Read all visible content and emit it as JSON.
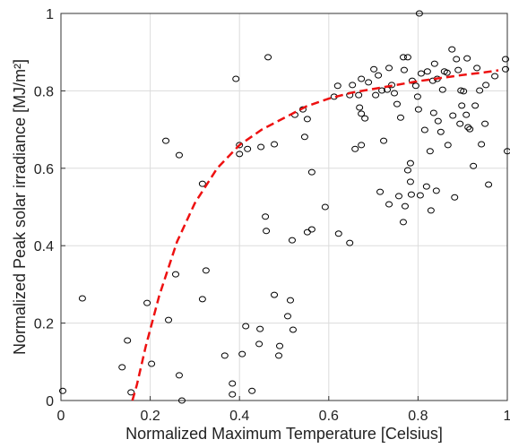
{
  "chart_data": {
    "type": "scatter",
    "xlabel": "Normalized Maximum Temperature [Celsius]",
    "ylabel": "Normalized Peak solar irradiance [MJ/m²]",
    "xlim": [
      0,
      1
    ],
    "ylim": [
      0,
      1
    ],
    "xticks": [
      0,
      0.2,
      0.4,
      0.6,
      0.8,
      1
    ],
    "yticks": [
      0,
      0.2,
      0.4,
      0.6,
      0.8,
      1
    ],
    "grid": true,
    "series": [
      {
        "marker": "circle",
        "color": "#000000",
        "x": [
          0.004,
          0.048,
          0.137,
          0.149,
          0.157,
          0.193,
          0.203,
          0.235,
          0.241,
          0.257,
          0.265,
          0.265,
          0.271,
          0.317,
          0.325,
          0.317,
          0.367,
          0.384,
          0.384,
          0.392,
          0.4,
          0.4,
          0.406,
          0.414,
          0.418,
          0.428,
          0.444,
          0.446,
          0.448,
          0.458,
          0.46,
          0.464,
          0.478,
          0.478,
          0.488,
          0.49,
          0.508,
          0.514,
          0.518,
          0.52,
          0.524,
          0.542,
          0.546,
          0.552,
          0.552,
          0.562,
          0.562,
          0.592,
          0.612,
          0.622,
          0.62,
          0.647,
          0.647,
          0.653,
          0.659,
          0.667,
          0.673,
          0.673,
          0.669,
          0.673,
          0.681,
          0.689,
          0.701,
          0.705,
          0.711,
          0.715,
          0.719,
          0.723,
          0.731,
          0.735,
          0.735,
          0.741,
          0.747,
          0.753,
          0.757,
          0.761,
          0.767,
          0.767,
          0.769,
          0.771,
          0.777,
          0.777,
          0.783,
          0.783,
          0.785,
          0.787,
          0.795,
          0.799,
          0.801,
          0.803,
          0.805,
          0.807,
          0.815,
          0.819,
          0.821,
          0.827,
          0.829,
          0.833,
          0.835,
          0.837,
          0.841,
          0.843,
          0.845,
          0.851,
          0.855,
          0.859,
          0.865,
          0.867,
          0.876,
          0.878,
          0.882,
          0.886,
          0.89,
          0.894,
          0.896,
          0.898,
          0.902,
          0.908,
          0.91,
          0.912,
          0.916,
          0.924,
          0.928,
          0.932,
          0.938,
          0.942,
          0.95,
          0.952,
          0.958,
          0.972,
          0.996,
          0.996,
          1.0
        ],
        "values": [
          0.025,
          0.264,
          0.086,
          0.155,
          0.021,
          0.252,
          0.095,
          0.671,
          0.208,
          0.326,
          0.634,
          0.065,
          0.0,
          0.56,
          0.336,
          0.262,
          0.116,
          0.044,
          0.016,
          0.831,
          0.66,
          0.637,
          0.12,
          0.192,
          0.65,
          0.025,
          0.146,
          0.185,
          0.655,
          0.475,
          0.438,
          0.887,
          0.662,
          0.273,
          0.116,
          0.141,
          0.218,
          0.259,
          0.414,
          0.183,
          0.738,
          0.752,
          0.681,
          0.727,
          0.435,
          0.442,
          0.59,
          0.5,
          0.785,
          0.431,
          0.813,
          0.789,
          0.407,
          0.815,
          0.65,
          0.789,
          0.831,
          0.66,
          0.757,
          0.741,
          0.729,
          0.822,
          0.856,
          0.789,
          0.84,
          0.539,
          0.801,
          0.671,
          0.803,
          0.859,
          0.507,
          0.815,
          0.794,
          0.766,
          0.528,
          0.731,
          0.461,
          0.887,
          0.854,
          0.502,
          0.595,
          0.887,
          0.613,
          0.565,
          0.532,
          0.826,
          0.813,
          0.785,
          0.752,
          1.0,
          0.53,
          0.845,
          0.699,
          0.553,
          0.85,
          0.644,
          0.491,
          0.826,
          0.743,
          0.87,
          0.542,
          0.831,
          0.722,
          0.694,
          0.803,
          0.85,
          0.847,
          0.66,
          0.907,
          0.736,
          0.525,
          0.882,
          0.854,
          0.715,
          0.801,
          0.762,
          0.799,
          0.738,
          0.884,
          0.706,
          0.701,
          0.606,
          0.762,
          0.859,
          0.801,
          0.662,
          0.715,
          0.815,
          0.558,
          0.838,
          0.882,
          0.856,
          0.644
        ]
      },
      {
        "line": "dashed",
        "color": "#ee1111",
        "x": [
          0.16,
          0.17,
          0.19,
          0.22,
          0.26,
          0.3,
          0.35,
          0.4,
          0.45,
          0.5,
          0.55,
          0.6,
          0.65,
          0.7,
          0.75,
          0.8,
          0.85,
          0.9,
          0.95,
          0.98
        ],
        "values": [
          0,
          0.04,
          0.14,
          0.27,
          0.41,
          0.51,
          0.6,
          0.66,
          0.7,
          0.73,
          0.76,
          0.78,
          0.795,
          0.805,
          0.815,
          0.825,
          0.833,
          0.841,
          0.848,
          0.853
        ]
      }
    ]
  }
}
